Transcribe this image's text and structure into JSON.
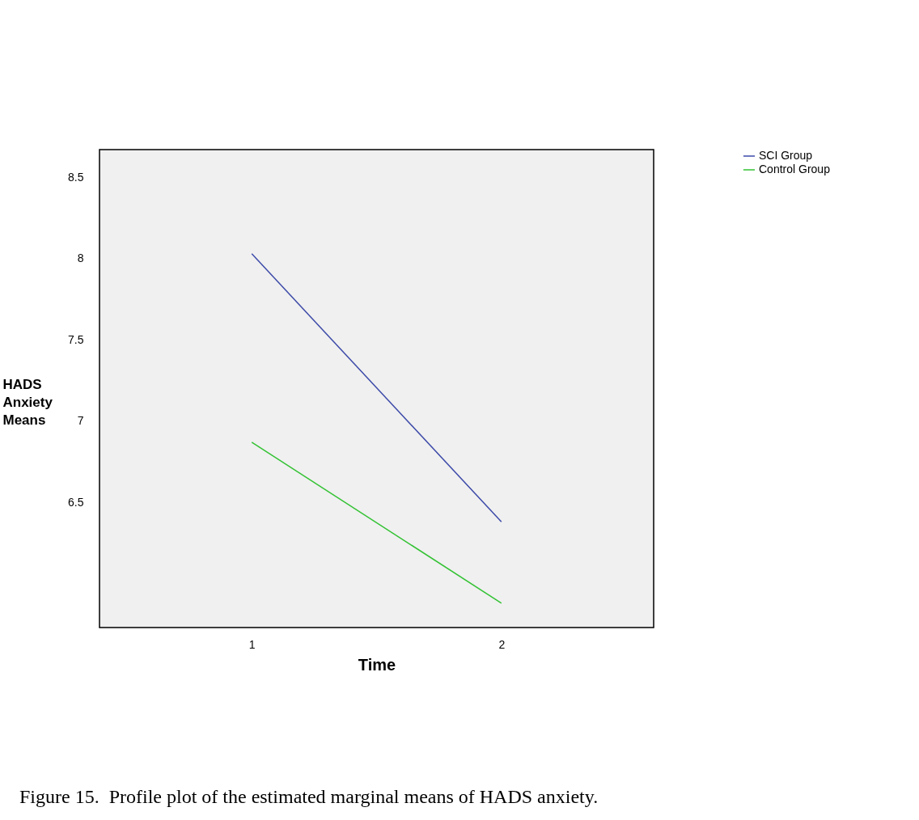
{
  "chart_data": {
    "type": "line",
    "xlabel": "Time",
    "ylabel": "HADS Anxiety Means",
    "x": [
      1,
      2
    ],
    "xlim": [
      0.39,
      2.61
    ],
    "xticks": [
      1,
      2
    ],
    "ylim": [
      5.73,
      8.67
    ],
    "yticks": [
      6.5,
      7,
      7.5,
      8,
      8.5
    ],
    "series": [
      {
        "name": "SCI Group",
        "color": "#3c4aa8",
        "values": [
          8.03,
          6.38
        ]
      },
      {
        "name": "Control Group",
        "color": "#33c233",
        "values": [
          6.87,
          5.88
        ]
      }
    ],
    "legend": "right",
    "grid": false,
    "marker": "none",
    "annotations": [
      "Figure 15.  Profile plot of the estimated marginal means of HADS anxiety."
    ]
  }
}
